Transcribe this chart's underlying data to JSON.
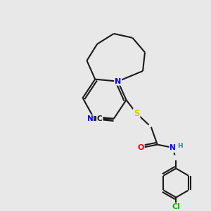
{
  "background_color": "#e8e8e8",
  "bond_color": "#1a1a1a",
  "atom_colors": {
    "N": "#0000ff",
    "S": "#cccc00",
    "O": "#ff0000",
    "Cl": "#00bb00",
    "C": "#1a1a1a",
    "H": "#2a8a8a"
  },
  "figsize": [
    3.0,
    3.0
  ],
  "dpi": 100
}
